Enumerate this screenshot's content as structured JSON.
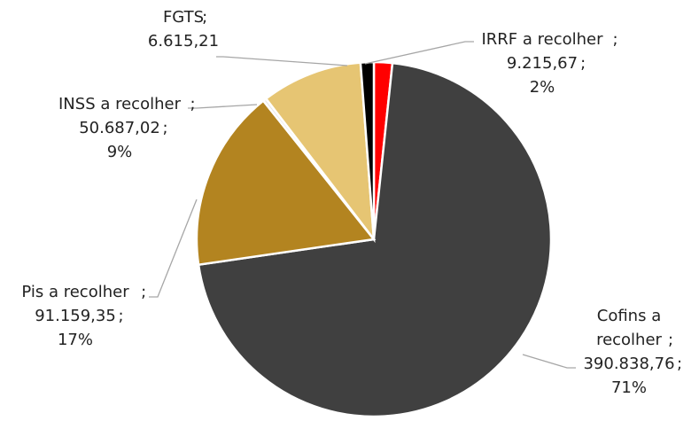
{
  "chart_data": {
    "type": "pie",
    "categories": [
      "IRRF a recolher",
      "Cofins a recolher",
      "Pis a recolher",
      null,
      "INSS a recolher",
      "FGTS"
    ],
    "values": [
      9215.67,
      390838.76,
      91159.35,
      1700,
      50687.02,
      6615.21
    ],
    "value_labels": [
      "9.215,67",
      "390.838,76",
      "91.159,35",
      null,
      "50.687,02",
      "6.615,21"
    ],
    "percent_labels": [
      "2%",
      "71%",
      "17%",
      null,
      "9%",
      null
    ],
    "separator": ";",
    "colors": [
      "#ff0000",
      "#404040",
      "#b38420",
      "#e8e8e8",
      "#e6c573",
      "#000000"
    ]
  }
}
